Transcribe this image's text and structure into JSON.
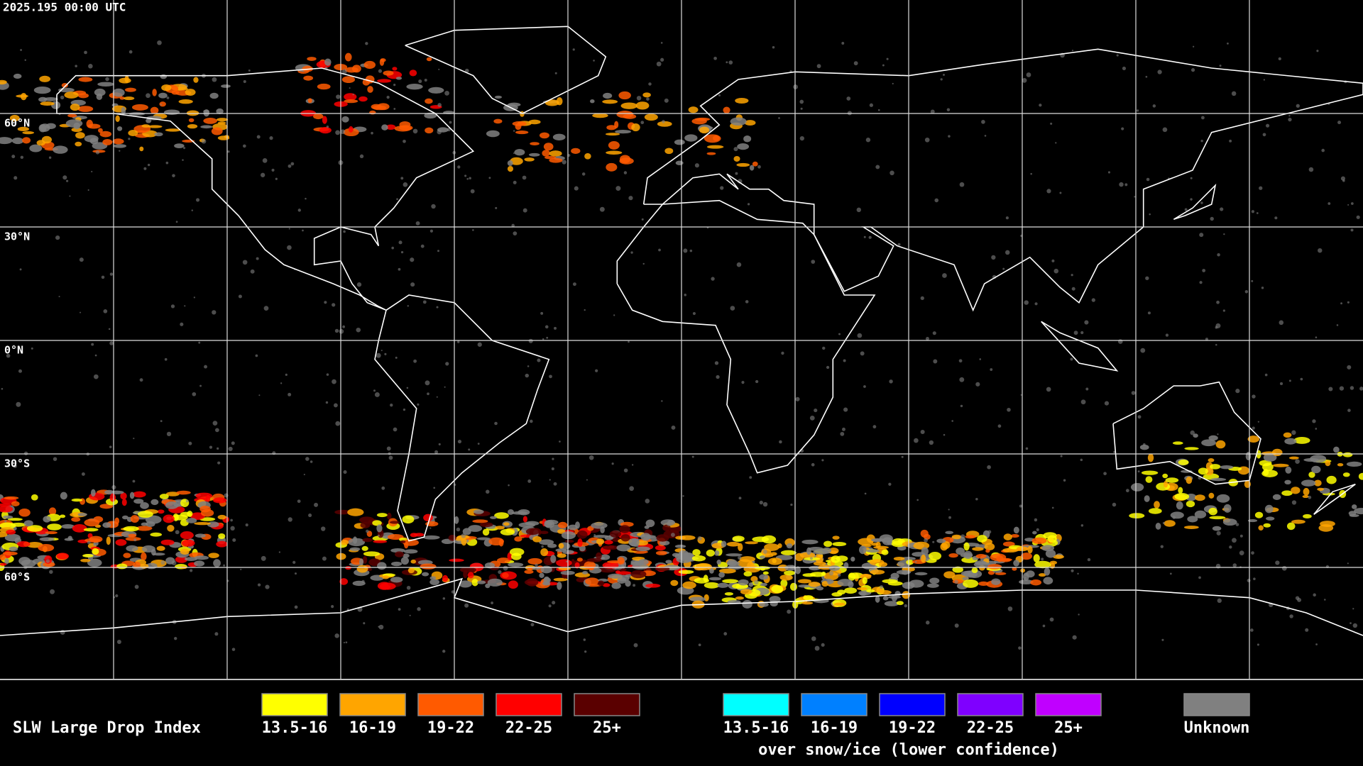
{
  "header": {
    "timestamp": "2025.195 00:00 UTC"
  },
  "map": {
    "latitude_labels": [
      "60°N",
      "30°N",
      "0°N",
      "30°S",
      "60°S"
    ]
  },
  "legend": {
    "title": "SLW Large Drop Index",
    "standard": [
      {
        "label": "13.5-16",
        "color": "#ffff00"
      },
      {
        "label": "16-19",
        "color": "#ffa500"
      },
      {
        "label": "19-22",
        "color": "#ff5a00"
      },
      {
        "label": "22-25",
        "color": "#ff0000"
      },
      {
        "label": "25+",
        "color": "#5a0000"
      }
    ],
    "snow_ice": [
      {
        "label": "13.5-16",
        "color": "#00ffff"
      },
      {
        "label": "16-19",
        "color": "#0080ff"
      },
      {
        "label": "19-22",
        "color": "#0000ff"
      },
      {
        "label": "22-25",
        "color": "#7f00ff"
      },
      {
        "label": "25+",
        "color": "#c000ff"
      }
    ],
    "snow_ice_note": "over snow/ice (lower confidence)",
    "unknown": {
      "label": "Unknown",
      "color": "#808080"
    }
  }
}
